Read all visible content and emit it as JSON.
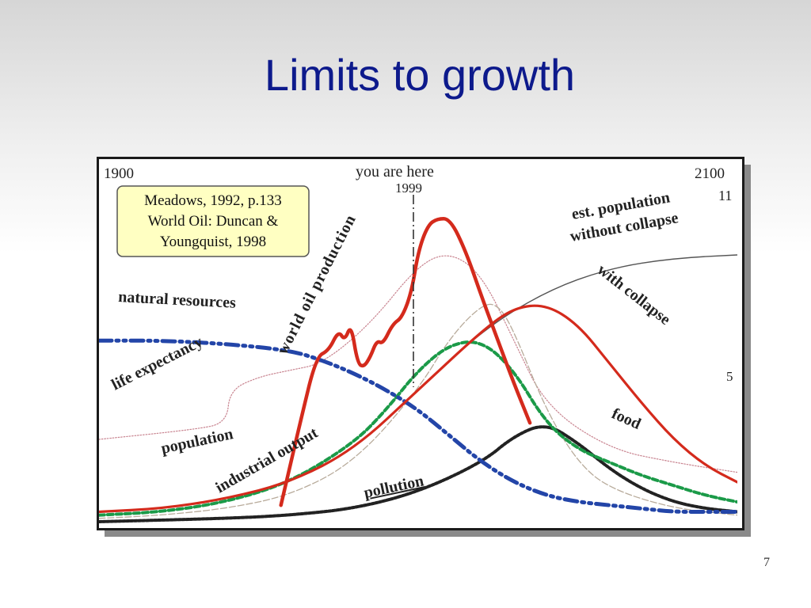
{
  "slide": {
    "title": "Limits to growth",
    "page_number": "7"
  },
  "chart_data": {
    "type": "line",
    "title": "",
    "x_start_label": "1900",
    "x_end_label": "2100",
    "xlim": [
      1900,
      2100
    ],
    "marker": {
      "year": 1999,
      "label": "you are here",
      "year_label": "1999"
    },
    "source_box": [
      "Meadows, 1992, p.133",
      "World Oil: Duncan &",
      "Youngquist, 1998"
    ],
    "population_end_labels": {
      "without_collapse": "11",
      "with_collapse": "5"
    },
    "series": [
      {
        "name": "world oil production",
        "color": "#d42a1c",
        "x": [
          1957,
          1963,
          1968,
          1972,
          1975,
          1977,
          1979,
          1981,
          1983,
          1985,
          1987,
          1989,
          1992,
          1995,
          1998,
          2000,
          2003,
          2006,
          2010,
          2015,
          2020,
          2025,
          2030,
          2035
        ],
        "y": [
          5,
          30,
          50,
          52,
          58,
          55,
          60,
          48,
          47,
          50,
          55,
          54,
          60,
          62,
          70,
          82,
          90,
          92,
          92,
          82,
          68,
          55,
          42,
          30
        ]
      },
      {
        "name": "est. population without collapse",
        "color": "#555555",
        "x": [
          2000,
          2020,
          2040,
          2060,
          2080,
          2100
        ],
        "y": [
          40,
          58,
          70,
          77,
          80,
          81
        ]
      },
      {
        "name": "with collapse",
        "color": "#d42a1c",
        "x": [
          1900,
          1920,
          1940,
          1960,
          1980,
          2000,
          2020,
          2030,
          2040,
          2050,
          2060,
          2070,
          2080,
          2090,
          2100
        ],
        "y": [
          3,
          4,
          7,
          12,
          22,
          40,
          58,
          65,
          66,
          60,
          48,
          36,
          25,
          17,
          12
        ]
      },
      {
        "name": "natural resources",
        "color": "#2345a8",
        "x": [
          1900,
          1920,
          1940,
          1960,
          1970,
          1980,
          1990,
          2000,
          2010,
          2020,
          2030,
          2040,
          2050,
          2060,
          2070,
          2080,
          2090,
          2100
        ],
        "y": [
          55,
          55,
          54,
          52,
          49,
          45,
          40,
          34,
          26,
          18,
          12,
          8,
          6,
          5,
          4,
          3,
          3,
          3
        ]
      },
      {
        "name": "food",
        "color": "#1b9a48",
        "x": [
          1900,
          1920,
          1940,
          1960,
          1980,
          1990,
          2000,
          2010,
          2020,
          2030,
          2040,
          2050,
          2060,
          2070,
          2080,
          2090,
          2100
        ],
        "y": [
          2,
          3,
          6,
          12,
          24,
          34,
          46,
          54,
          55,
          46,
          30,
          22,
          18,
          14,
          11,
          8,
          6
        ]
      },
      {
        "name": "industrial output",
        "color": "#b8ab9b",
        "x": [
          1900,
          1920,
          1940,
          1960,
          1980,
          2000,
          2010,
          2020,
          2025,
          2030,
          2040,
          2050,
          2060,
          2080,
          2100
        ],
        "y": [
          1,
          2,
          4,
          8,
          18,
          40,
          56,
          66,
          66,
          58,
          34,
          18,
          10,
          4,
          2
        ]
      },
      {
        "name": "pollution",
        "color": "#222222",
        "x": [
          1900,
          1940,
          1960,
          1980,
          2000,
          2020,
          2030,
          2040,
          2050,
          2060,
          2070,
          2080,
          2090,
          2100
        ],
        "y": [
          0,
          1,
          2,
          4,
          9,
          18,
          26,
          30,
          24,
          16,
          10,
          6,
          4,
          3
        ]
      },
      {
        "name": "life expectancy",
        "color": "#c8838f",
        "x": [
          1900,
          1930,
          1940,
          1941,
          1950,
          1960,
          1970,
          1985,
          2000,
          2010,
          2020,
          2030,
          2040,
          2060,
          2080,
          2100
        ],
        "y": [
          25,
          28,
          30,
          40,
          44,
          46,
          48,
          60,
          78,
          82,
          75,
          55,
          35,
          22,
          18,
          15
        ]
      }
    ]
  }
}
